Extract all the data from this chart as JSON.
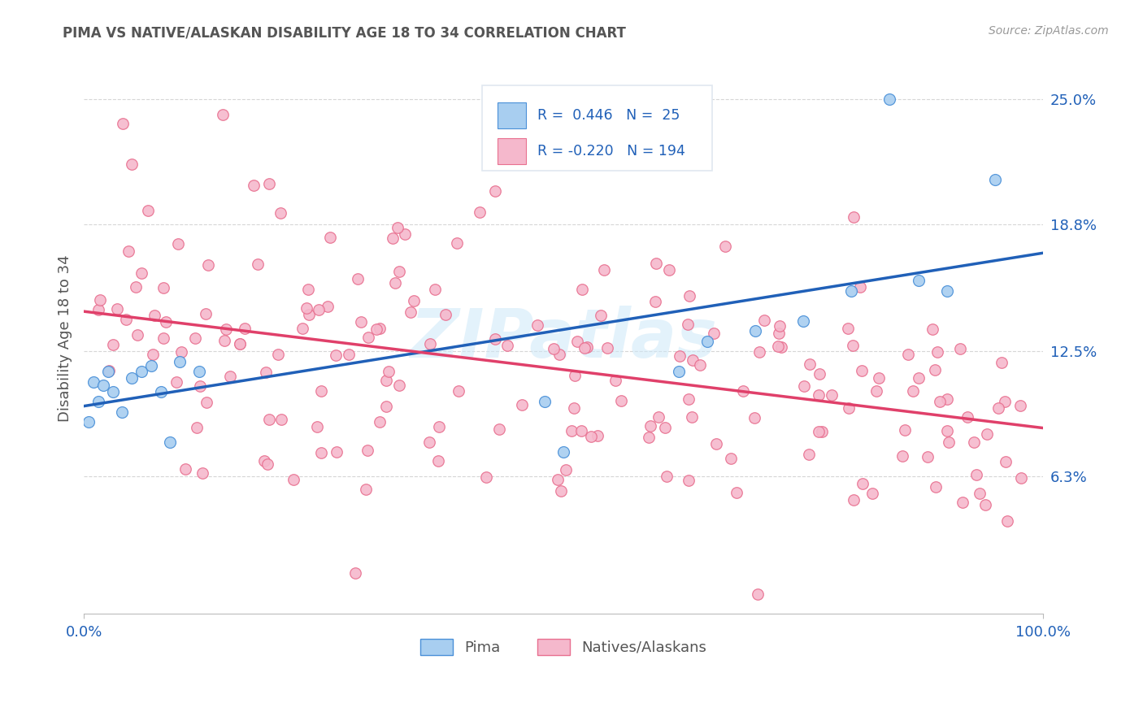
{
  "title": "PIMA VS NATIVE/ALASKAN DISABILITY AGE 18 TO 34 CORRELATION CHART",
  "source": "Source: ZipAtlas.com",
  "ylabel": "Disability Age 18 to 34",
  "xlim": [
    0.0,
    1.0
  ],
  "ylim": [
    -0.005,
    0.268
  ],
  "yticks": [
    0.063,
    0.125,
    0.188,
    0.25
  ],
  "ytick_labels": [
    "6.3%",
    "12.5%",
    "18.8%",
    "25.0%"
  ],
  "xtick_labels": [
    "0.0%",
    "100.0%"
  ],
  "pima_R": 0.446,
  "pima_N": 25,
  "native_R": -0.22,
  "native_N": 194,
  "pima_color": "#a8cef0",
  "native_color": "#f5b8cc",
  "pima_line_color": "#2060b8",
  "native_line_color": "#e0406a",
  "pima_edge_color": "#4a90d8",
  "native_edge_color": "#e87090",
  "watermark": "ZIPatlas",
  "background_color": "#ffffff",
  "grid_color": "#cccccc",
  "title_color": "#555555",
  "legend_text_color": "#2060b8",
  "ytick_color": "#2060b8",
  "legend_box_color": "#e0e8f0"
}
